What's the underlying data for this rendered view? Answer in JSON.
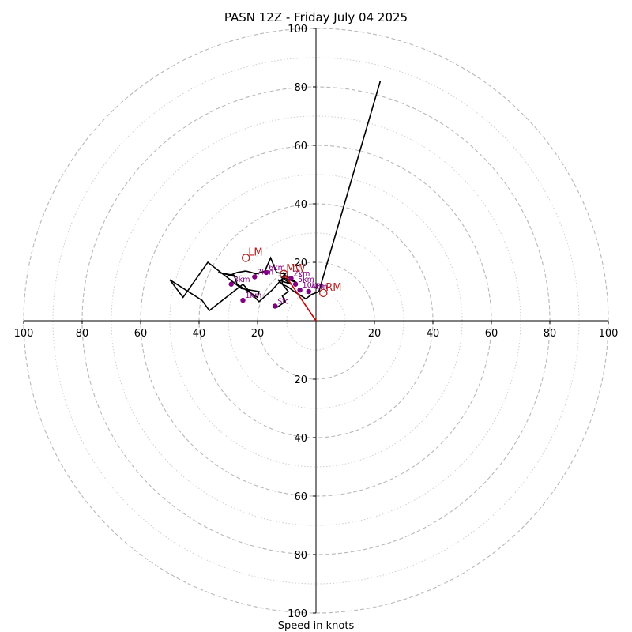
{
  "chart_data": {
    "type": "line",
    "title": "PASN 12Z - Friday July 04 2025",
    "xlabel": "Speed in knots",
    "axis_range": [
      -100,
      100
    ],
    "major_rings": [
      20,
      40,
      60,
      80,
      100
    ],
    "minor_rings": [
      10,
      30,
      50,
      70,
      90
    ],
    "tick_labels": {
      "x_negative": [
        "100",
        "80",
        "60",
        "40",
        "20"
      ],
      "x_positive": [
        "20",
        "40",
        "60",
        "80",
        "100"
      ],
      "y_positive": [
        "20",
        "40",
        "60",
        "80",
        "100"
      ],
      "y_negative": [
        "20",
        "40",
        "60",
        "80",
        "100"
      ]
    },
    "grid": true,
    "hodograph": {
      "color": "#000000",
      "u": [
        -13.5,
        -10.5,
        -11.5,
        -9.5,
        -11.5,
        -13.0,
        -8.5,
        -12.0,
        -6.5,
        -10.5,
        -15.0,
        -19.5,
        -25.0,
        -36.5,
        -39.0,
        -50.0,
        -45.5,
        -37.0,
        -25.5,
        -19.5,
        -20.0,
        -27.0,
        -28.0,
        -33.5,
        -27.0,
        -29.5,
        -27.0,
        -24.0,
        -22.0,
        -20.5,
        -19.0,
        -17.5,
        -15.5,
        -13.5,
        -10.5,
        -11.5,
        -11.5,
        -9.5,
        -7.5,
        -5.0,
        -3.5,
        -1.5,
        1.0,
        22.0
      ],
      "v": [
        4.5,
        6.5,
        8.5,
        10.0,
        12.5,
        14.0,
        12.5,
        15.0,
        13.0,
        15.5,
        10.5,
        6.5,
        12.5,
        3.5,
        7.0,
        14.0,
        8.0,
        20.0,
        11.0,
        10.0,
        8.0,
        12.5,
        15.5,
        16.5,
        15.0,
        15.5,
        16.5,
        17.0,
        16.5,
        16.0,
        16.5,
        17.0,
        21.5,
        16.5,
        16.0,
        15.0,
        12.5,
        11.5,
        10.0,
        8.5,
        7.5,
        9.0,
        10.0,
        82.0
      ]
    },
    "height_markers": [
      {
        "label": "Sfc",
        "u": -14.0,
        "v": 5.0
      },
      {
        "label": "1km",
        "u": -25.0,
        "v": 7.0
      },
      {
        "label": "3km",
        "u": -29.0,
        "v": 12.5
      },
      {
        "label": "7km",
        "u": -21.0,
        "v": 15.0
      },
      {
        "label": "6km",
        "u": -17.0,
        "v": 16.5
      },
      {
        "label": "2km",
        "u": -8.5,
        "v": 14.5
      },
      {
        "label": "5km",
        "u": -7.0,
        "v": 12.5
      },
      {
        "label": "10km",
        "u": -5.5,
        "v": 10.5
      },
      {
        "label": "4km",
        "u": -2.5,
        "v": 10.0
      }
    ],
    "storm_motion": [
      {
        "label": "LM",
        "u": -24.0,
        "v": 21.5
      },
      {
        "label": "MW",
        "u": -11.0,
        "v": 16.0
      },
      {
        "label": "RM",
        "u": 2.5,
        "v": 9.5
      }
    ],
    "shear_vector": {
      "color": "#cc0000",
      "u": -10.5,
      "v": 15.5
    },
    "colors": {
      "grid": "#b8b8b8",
      "marker": "#800080",
      "storm_motion": "#b22222"
    }
  }
}
